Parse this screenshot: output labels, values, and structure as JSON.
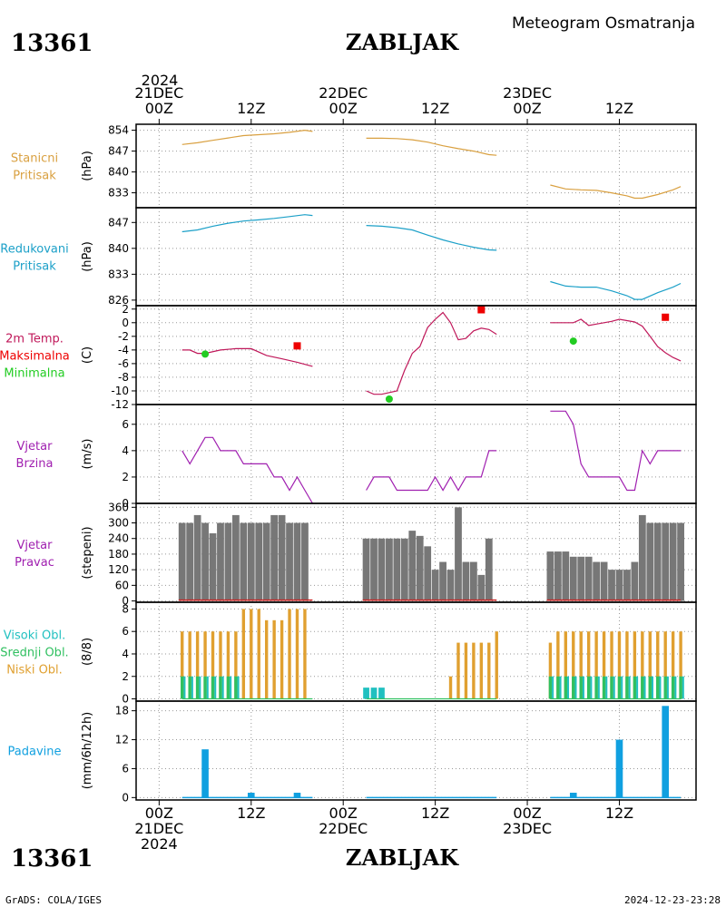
{
  "header": {
    "station_id": "13361",
    "station_name": "ZABLJAK",
    "subtitle": "Meteogram Osmatranja",
    "footer_left": "GrADS: COLA/IGES",
    "footer_right": "2024-12-23-23:28"
  },
  "time_axis": {
    "year": "2024",
    "top_labels": [
      {
        "t": 0,
        "lines": [
          "21DEC",
          "00Z"
        ]
      },
      {
        "t": 12,
        "lines": [
          "12Z"
        ]
      },
      {
        "t": 24,
        "lines": [
          "22DEC",
          "00Z"
        ]
      },
      {
        "t": 36,
        "lines": [
          "12Z"
        ]
      },
      {
        "t": 48,
        "lines": [
          "23DEC",
          "00Z"
        ]
      },
      {
        "t": 60,
        "lines": [
          "12Z"
        ]
      }
    ],
    "bottom_labels": [
      {
        "t": 0,
        "lines": [
          "00Z",
          "21DEC",
          "2024"
        ]
      },
      {
        "t": 12,
        "lines": [
          "12Z"
        ]
      },
      {
        "t": 24,
        "lines": [
          "00Z",
          "22DEC"
        ]
      },
      {
        "t": 36,
        "lines": [
          "12Z"
        ]
      },
      {
        "t": 48,
        "lines": [
          "00Z",
          "23DEC"
        ]
      },
      {
        "t": 60,
        "lines": [
          "12Z"
        ]
      }
    ],
    "range_hours": [
      -3,
      70
    ]
  },
  "colors": {
    "pressure_station": "#d9a040",
    "pressure_reduced": "#1ca0c8",
    "temp": "#c0185a",
    "tmax": "#ee0000",
    "tmin": "#22cc22",
    "wind": "#a020b0",
    "bars": "#777777",
    "cloud_high": "#20c0c0",
    "cloud_mid": "#30c060",
    "cloud_low": "#e0a030",
    "precip": "#10a0e0"
  },
  "chart_data": [
    {
      "type": "line",
      "panel": "station_pressure",
      "labels": [
        "Stanicni",
        "Pritisak"
      ],
      "ylabel": "(hPa)",
      "yticks": [
        833,
        840,
        847,
        854
      ],
      "ylim": [
        828,
        856
      ],
      "series": [
        {
          "x": [
            3,
            5,
            7,
            9,
            11,
            13,
            15,
            17,
            19,
            20
          ],
          "y": [
            849.2,
            849.8,
            850.6,
            851.4,
            852.2,
            852.5,
            852.8,
            853.3,
            854.0,
            853.6
          ]
        },
        {
          "x": [
            27,
            29,
            31,
            33,
            35,
            37,
            39,
            41,
            43,
            44
          ],
          "y": [
            851.3,
            851.3,
            851.2,
            850.8,
            850.0,
            848.8,
            847.8,
            847.0,
            845.8,
            845.6
          ]
        },
        {
          "x": [
            51,
            53,
            55,
            57,
            59,
            61,
            62,
            63,
            65,
            67,
            68
          ],
          "y": [
            835.6,
            834.3,
            834.0,
            833.8,
            833.0,
            832.0,
            831.2,
            831.2,
            832.4,
            834.0,
            835.1
          ]
        }
      ]
    },
    {
      "type": "line",
      "panel": "reduced_pressure",
      "labels": [
        "Redukovani",
        "Pritisak"
      ],
      "ylabel": "(hPa)",
      "yticks": [
        826,
        833,
        840,
        847
      ],
      "ylim": [
        824.5,
        851
      ],
      "series": [
        {
          "x": [
            3,
            5,
            7,
            9,
            11,
            13,
            15,
            17,
            19,
            20
          ],
          "y": [
            844.5,
            845.0,
            846.0,
            846.8,
            847.4,
            847.7,
            848.1,
            848.6,
            849.1,
            848.9
          ]
        },
        {
          "x": [
            27,
            29,
            31,
            33,
            35,
            37,
            39,
            41,
            43,
            44
          ],
          "y": [
            846.2,
            846.0,
            845.6,
            845.0,
            843.6,
            842.3,
            841.2,
            840.3,
            839.6,
            839.5
          ]
        },
        {
          "x": [
            51,
            53,
            55,
            57,
            59,
            61,
            62,
            63,
            65,
            67,
            68
          ],
          "y": [
            831.0,
            829.8,
            829.5,
            829.5,
            828.5,
            827.2,
            826.2,
            826.2,
            828.0,
            829.5,
            830.5
          ]
        }
      ]
    },
    {
      "type": "line",
      "panel": "temperature",
      "labels": [
        "2m Temp.",
        "Maksimalna",
        "Minimalna"
      ],
      "ylabel": "(C)",
      "yticks": [
        2,
        0,
        -2,
        -4,
        -6,
        -8,
        -10,
        -12
      ],
      "ylim": [
        -12,
        2.5
      ],
      "series": [
        {
          "name": "2m Temp.",
          "x": [
            3,
            4,
            5,
            6,
            8,
            10,
            12,
            14,
            16,
            18,
            20
          ],
          "y": [
            -4.0,
            -4.0,
            -4.5,
            -4.5,
            -4.0,
            -3.8,
            -3.8,
            -4.8,
            -5.3,
            -5.8,
            -6.4
          ]
        },
        {
          "name": "2m Temp.",
          "x": [
            27,
            28,
            29,
            31,
            32,
            33,
            34,
            35,
            36,
            37,
            38,
            39,
            40,
            41,
            42,
            43,
            44
          ],
          "y": [
            -10.0,
            -10.5,
            -10.5,
            -10.0,
            -7.0,
            -4.5,
            -3.5,
            -0.7,
            0.5,
            1.5,
            0.0,
            -2.5,
            -2.3,
            -1.2,
            -0.8,
            -1.0,
            -1.7
          ]
        },
        {
          "name": "2m Temp.",
          "x": [
            51,
            52,
            53,
            54,
            55,
            56,
            57,
            58,
            59,
            60,
            61,
            62,
            63,
            64,
            65,
            66,
            67,
            68
          ],
          "y": [
            0.0,
            0.0,
            0.0,
            0.0,
            0.5,
            -0.4,
            -0.2,
            0.0,
            0.2,
            0.5,
            0.3,
            0.1,
            -0.5,
            -2.0,
            -3.5,
            -4.4,
            -5.1,
            -5.6
          ]
        }
      ],
      "maxima": [
        {
          "x": 18,
          "y": -3.4
        },
        {
          "x": 42,
          "y": 1.9
        },
        {
          "x": 66,
          "y": 0.8
        }
      ],
      "minima": [
        {
          "x": 6,
          "y": -4.6
        },
        {
          "x": 30,
          "y": -11.2
        },
        {
          "x": 54,
          "y": -2.7
        }
      ]
    },
    {
      "type": "line",
      "panel": "wind_speed",
      "labels": [
        "Vjetar",
        "Brzina"
      ],
      "ylabel": "(m/s)",
      "yticks": [
        0,
        2,
        4,
        6
      ],
      "ylim": [
        0,
        7.5
      ],
      "series": [
        {
          "x": [
            3,
            4,
            5,
            6,
            7,
            8,
            9,
            10,
            11,
            12,
            13,
            14,
            15,
            16,
            17,
            18,
            19,
            20
          ],
          "y": [
            4,
            3,
            4,
            5,
            5,
            4,
            4,
            4,
            3,
            3,
            3,
            3,
            2,
            2,
            1,
            2,
            1,
            0
          ]
        },
        {
          "x": [
            27,
            28,
            29,
            30,
            31,
            32,
            33,
            34,
            35,
            36,
            37,
            38,
            39,
            40,
            41,
            42,
            43,
            44
          ],
          "y": [
            1,
            2,
            2,
            2,
            1,
            1,
            1,
            1,
            1,
            2,
            1,
            2,
            1,
            2,
            2,
            2,
            4,
            4
          ]
        },
        {
          "x": [
            51,
            52,
            53,
            54,
            55,
            56,
            57,
            58,
            59,
            60,
            61,
            62,
            63,
            64,
            65,
            66,
            67,
            68
          ],
          "y": [
            7,
            7,
            7,
            6,
            3,
            2,
            2,
            2,
            2,
            2,
            1,
            1,
            4,
            3,
            4,
            4,
            4,
            4
          ]
        }
      ]
    },
    {
      "type": "bar",
      "panel": "wind_direction",
      "labels": [
        "Vjetar",
        "Pravac"
      ],
      "ylabel": "(stepeni)",
      "yticks": [
        0,
        60,
        120,
        180,
        240,
        300,
        360
      ],
      "ylim": [
        -5,
        375
      ],
      "x": [
        3,
        4,
        5,
        6,
        7,
        8,
        9,
        10,
        11,
        12,
        13,
        14,
        15,
        16,
        17,
        18,
        19,
        27,
        28,
        29,
        30,
        31,
        32,
        33,
        34,
        35,
        36,
        37,
        38,
        39,
        40,
        41,
        42,
        43,
        51,
        52,
        53,
        54,
        55,
        56,
        57,
        58,
        59,
        60,
        61,
        62,
        63,
        64,
        65,
        66,
        67,
        68
      ],
      "values": [
        300,
        300,
        330,
        300,
        260,
        300,
        300,
        330,
        300,
        300,
        300,
        300,
        330,
        330,
        300,
        300,
        300,
        240,
        240,
        240,
        240,
        240,
        240,
        270,
        250,
        210,
        120,
        150,
        120,
        360,
        150,
        150,
        100,
        240,
        190,
        190,
        190,
        170,
        170,
        170,
        150,
        150,
        120,
        120,
        120,
        150,
        330,
        300,
        300,
        300,
        300,
        300
      ],
      "overlay_x": [
        [
          3,
          20
        ],
        [
          27,
          44
        ],
        [
          51,
          68
        ]
      ]
    },
    {
      "type": "bar",
      "panel": "cloud_cover",
      "labels": [
        "Visoki Obl.",
        "Srednji Obl.",
        "Niski Obl."
      ],
      "ylabel": "(8/8)",
      "yticks": [
        0,
        2,
        4,
        6,
        8
      ],
      "ylim": [
        -0.2,
        8.6
      ],
      "low": {
        "x": [
          3,
          4,
          5,
          6,
          7,
          8,
          9,
          10,
          11,
          12,
          13,
          14,
          15,
          16,
          17,
          18,
          19,
          38,
          39,
          40,
          41,
          42,
          43,
          44,
          51,
          52,
          53,
          54,
          55,
          56,
          57,
          58,
          59,
          60,
          61,
          62,
          63,
          64,
          65,
          66,
          67,
          68
        ],
        "values": [
          6,
          6,
          6,
          6,
          6,
          6,
          6,
          6,
          8,
          8,
          8,
          7,
          7,
          7,
          8,
          8,
          8,
          2,
          5,
          5,
          5,
          5,
          5,
          6,
          5,
          6,
          6,
          6,
          6,
          6,
          6,
          6,
          6,
          6,
          6,
          6,
          6,
          6,
          6,
          6,
          6,
          6
        ]
      },
      "mid": {
        "x": [
          3,
          4,
          5,
          6,
          7,
          8,
          9,
          10,
          51,
          52,
          53,
          54,
          55,
          56,
          57,
          58,
          59,
          60,
          61,
          62,
          63,
          64,
          65,
          66,
          67,
          68
        ],
        "values": [
          2,
          2,
          2,
          2,
          2,
          2,
          2,
          2,
          2,
          2,
          2,
          2,
          2,
          2,
          2,
          2,
          2,
          2,
          2,
          2,
          2,
          2,
          2,
          2,
          2,
          2
        ]
      },
      "high": {
        "x": [
          3,
          4,
          5,
          6,
          7,
          8,
          9,
          10,
          27,
          28,
          29,
          51,
          52,
          53,
          54,
          55,
          56,
          57,
          58,
          59,
          60,
          61,
          62,
          63,
          64,
          65,
          66,
          67,
          68
        ],
        "values": [
          2,
          2,
          2,
          2,
          2,
          2,
          2,
          2,
          1,
          1,
          1,
          2,
          2,
          2,
          2,
          2,
          2,
          2,
          2,
          2,
          2,
          2,
          2,
          2,
          2,
          2,
          2,
          2,
          2
        ]
      }
    },
    {
      "type": "bar",
      "panel": "precipitation",
      "labels": [
        "Padavine"
      ],
      "ylabel": "(mm/6h/12h)",
      "yticks": [
        0,
        6,
        12,
        18
      ],
      "ylim": [
        -0.5,
        20
      ],
      "x": [
        6,
        12,
        18,
        54,
        60,
        66
      ],
      "values": [
        10,
        1,
        1,
        1,
        12,
        19
      ],
      "baseline_x": [
        [
          3,
          20
        ],
        [
          27,
          44
        ],
        [
          51,
          68
        ]
      ]
    }
  ]
}
